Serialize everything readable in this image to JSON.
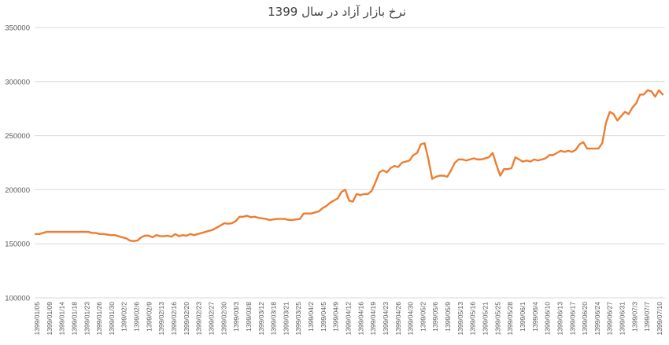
{
  "chart_data": {
    "type": "line",
    "title": "نرخ بازار آزاد در سال 1399",
    "xlabel": "",
    "ylabel": "",
    "ylim": [
      100000,
      350000
    ],
    "yticks": [
      "100000",
      "150000",
      "200000",
      "250000",
      "300000",
      "350000"
    ],
    "grid": "horizontal",
    "line_color": "#ED7D31",
    "x_tick_labels": [
      "1399/01/05",
      "1399/01/09",
      "1399/01/14",
      "1399/01/18",
      "1399/01/23",
      "1399/01/26",
      "1399/01/30",
      "1399/02/2",
      "1399/02/6",
      "1399/02/9",
      "1399/02/13",
      "1399/02/16",
      "1399/02/20",
      "1399/02/23",
      "1399/02/27",
      "1399/02/30",
      "1399/03/3",
      "1399/03/8",
      "1399/03/12",
      "1399/03/18",
      "1399/03/21",
      "1399/03/25",
      "1399/04/2",
      "1399/04/5",
      "1399/04/9",
      "1399/04/12",
      "1399/04/16",
      "1399/04/19",
      "1399/04/23",
      "1399/04/26",
      "1399/04/30",
      "1399/05/2",
      "1399/05/6",
      "1399/05/9",
      "1399/05/13",
      "1399/05/16",
      "1399/05/21",
      "1399/05/25",
      "1399/05/28",
      "1399/06/1",
      "1399/06/4",
      "1399/06/10",
      "1399/06/13",
      "1399/06/17",
      "1399/06/20",
      "1399/06/24",
      "1399/06/27",
      "1399/06/31",
      "1399/07/3",
      "1399/07/7",
      "1399/07/10"
    ],
    "series": [
      {
        "values": [
          159000,
          159000,
          160000,
          161000,
          161000,
          161000,
          161000,
          161000,
          161000,
          161000,
          161000,
          161000,
          161000,
          161000,
          161000,
          160000,
          160000,
          159000,
          159000,
          158500,
          158000,
          158000,
          157000,
          156000,
          155000,
          153000,
          152500,
          153000,
          156000,
          157500,
          157500,
          156000,
          158000,
          157000,
          157000,
          157500,
          156500,
          159000,
          157000,
          158000,
          157500,
          159000,
          158000,
          159000,
          160000,
          161000,
          162000,
          163000,
          165000,
          167000,
          169000,
          168500,
          169000,
          171000,
          175000,
          175000,
          176000,
          174500,
          175000,
          174000,
          173500,
          173000,
          172000,
          172500,
          173000,
          173000,
          173000,
          172000,
          172000,
          172500,
          173000,
          178000,
          178000,
          178000,
          179000,
          180000,
          183000,
          185000,
          188000,
          190000,
          192000,
          198000,
          200000,
          190000,
          189000,
          196000,
          195000,
          196000,
          196000,
          199000,
          207000,
          216000,
          218000,
          216000,
          220000,
          222000,
          221000,
          225000,
          226000,
          227000,
          232000,
          234000,
          242000,
          243000,
          228000,
          210000,
          212000,
          213000,
          213000,
          212000,
          218000,
          225000,
          228000,
          228000,
          227000,
          228000,
          229000,
          228000,
          228000,
          229000,
          230000,
          234000,
          223000,
          213000,
          219000,
          219000,
          220000,
          230000,
          228000,
          226000,
          227000,
          226000,
          228000,
          227000,
          228000,
          229000,
          232000,
          232000,
          234000,
          236000,
          235000,
          236000,
          235000,
          237000,
          242000,
          244000,
          238000,
          238000,
          238000,
          238000,
          243000,
          262000,
          272000,
          270000,
          264000,
          268000,
          272000,
          270000,
          276000,
          280000,
          288000,
          288000,
          292000,
          291000,
          286000,
          292000,
          288000
        ]
      }
    ]
  }
}
